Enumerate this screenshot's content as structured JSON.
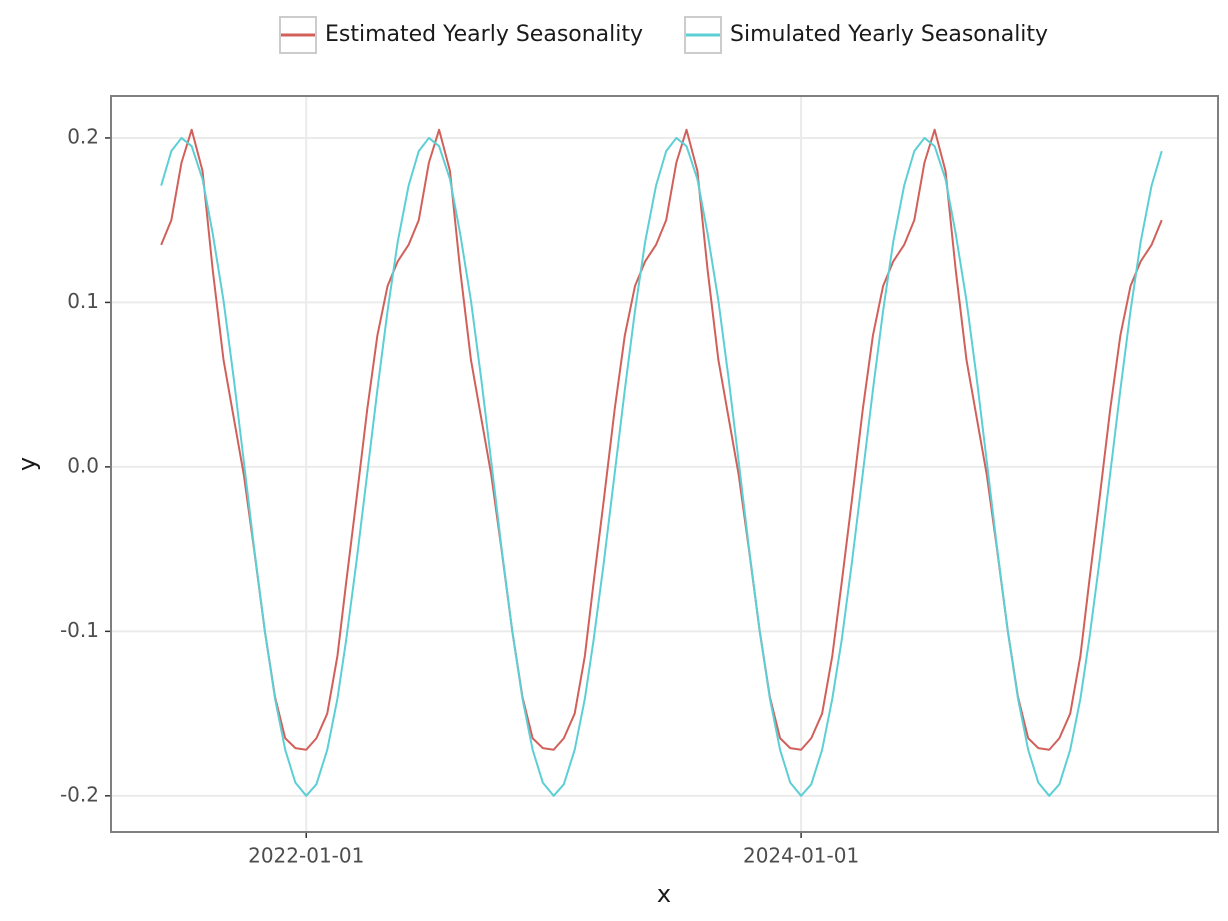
{
  "chart_data": {
    "type": "line",
    "x_label": "x",
    "y_label": "y",
    "legend": "top",
    "grid": true,
    "x": [
      "2021-06-01",
      "2021-06-16",
      "2021-07-01",
      "2021-07-16",
      "2021-08-01",
      "2021-08-16",
      "2021-09-01",
      "2021-09-16",
      "2021-10-01",
      "2021-10-16",
      "2021-11-01",
      "2021-11-16",
      "2021-12-01",
      "2021-12-16",
      "2022-01-01",
      "2022-01-16",
      "2022-02-01",
      "2022-02-16",
      "2022-03-01",
      "2022-03-16",
      "2022-04-01",
      "2022-04-16",
      "2022-05-01",
      "2022-05-16",
      "2022-06-01",
      "2022-06-16",
      "2022-07-01",
      "2022-07-16",
      "2022-08-01",
      "2022-08-16",
      "2022-09-01",
      "2022-09-16",
      "2022-10-01",
      "2022-10-16",
      "2022-11-01",
      "2022-11-16",
      "2022-12-01",
      "2022-12-16",
      "2023-01-01",
      "2023-01-16",
      "2023-02-01",
      "2023-02-16",
      "2023-03-01",
      "2023-03-16",
      "2023-04-01",
      "2023-04-16",
      "2023-05-01",
      "2023-05-16",
      "2023-06-01",
      "2023-06-16",
      "2023-07-01",
      "2023-07-16",
      "2023-08-01",
      "2023-08-16",
      "2023-09-01",
      "2023-09-16",
      "2023-10-01",
      "2023-10-16",
      "2023-11-01",
      "2023-11-16",
      "2023-12-01",
      "2023-12-16",
      "2024-01-01",
      "2024-01-16",
      "2024-02-01",
      "2024-02-16",
      "2024-03-01",
      "2024-03-16",
      "2024-04-01",
      "2024-04-16",
      "2024-05-01",
      "2024-05-16",
      "2024-06-01",
      "2024-06-16",
      "2024-07-01",
      "2024-07-16",
      "2024-08-01",
      "2024-08-16",
      "2024-09-01",
      "2024-09-16",
      "2024-10-01",
      "2024-10-16",
      "2024-11-01",
      "2024-11-16",
      "2024-12-01",
      "2024-12-16",
      "2025-01-01",
      "2025-01-16",
      "2025-02-01",
      "2025-02-16",
      "2025-03-01",
      "2025-03-16",
      "2025-04-01",
      "2025-04-16",
      "2025-05-01",
      "2025-05-16",
      "2025-06-01",
      "2025-06-16"
    ],
    "series": [
      {
        "name": "Estimated Yearly Seasonality",
        "color": "#d1605a",
        "values": [
          0.135,
          0.15,
          0.185,
          0.205,
          0.18,
          0.12,
          0.065,
          0.03,
          -0.005,
          -0.05,
          -0.1,
          -0.14,
          -0.165,
          -0.171,
          -0.172,
          -0.165,
          -0.15,
          -0.115,
          -0.07,
          -0.02,
          0.035,
          0.08,
          0.11,
          0.125,
          0.135,
          0.15,
          0.185,
          0.205,
          0.18,
          0.12,
          0.065,
          0.03,
          -0.005,
          -0.05,
          -0.1,
          -0.14,
          -0.165,
          -0.171,
          -0.172,
          -0.165,
          -0.15,
          -0.115,
          -0.07,
          -0.02,
          0.035,
          0.08,
          0.11,
          0.125,
          0.135,
          0.15,
          0.185,
          0.205,
          0.18,
          0.12,
          0.065,
          0.03,
          -0.005,
          -0.05,
          -0.1,
          -0.14,
          -0.165,
          -0.171,
          -0.172,
          -0.165,
          -0.15,
          -0.115,
          -0.07,
          -0.02,
          0.035,
          0.08,
          0.11,
          0.125,
          0.135,
          0.15,
          0.185,
          0.205,
          0.18,
          0.12,
          0.065,
          0.03,
          -0.005,
          -0.05,
          -0.1,
          -0.14,
          -0.165,
          -0.171,
          -0.172,
          -0.165,
          -0.15,
          -0.115,
          -0.07,
          -0.02,
          0.035,
          0.08,
          0.11,
          0.125,
          0.135,
          0.15
        ]
      },
      {
        "name": "Simulated Yearly Seasonality",
        "color": "#5ccfd5",
        "values": [
          0.171,
          0.192,
          0.2,
          0.195,
          0.175,
          0.142,
          0.101,
          0.054,
          0.003,
          -0.049,
          -0.1,
          -0.141,
          -0.172,
          -0.192,
          -0.2,
          -0.193,
          -0.172,
          -0.141,
          -0.105,
          -0.058,
          -0.004,
          0.047,
          0.095,
          0.137,
          0.171,
          0.192,
          0.2,
          0.195,
          0.175,
          0.142,
          0.101,
          0.054,
          0.003,
          -0.049,
          -0.1,
          -0.141,
          -0.172,
          -0.192,
          -0.2,
          -0.193,
          -0.172,
          -0.141,
          -0.105,
          -0.058,
          -0.004,
          0.047,
          0.095,
          0.137,
          0.171,
          0.192,
          0.2,
          0.195,
          0.175,
          0.142,
          0.101,
          0.054,
          0.003,
          -0.049,
          -0.1,
          -0.141,
          -0.172,
          -0.192,
          -0.2,
          -0.193,
          -0.172,
          -0.141,
          -0.105,
          -0.058,
          -0.004,
          0.047,
          0.095,
          0.137,
          0.171,
          0.192,
          0.2,
          0.195,
          0.175,
          0.142,
          0.101,
          0.054,
          0.003,
          -0.049,
          -0.1,
          -0.141,
          -0.172,
          -0.192,
          -0.2,
          -0.193,
          -0.172,
          -0.141,
          -0.105,
          -0.058,
          -0.004,
          0.047,
          0.095,
          0.137,
          0.171,
          0.192
        ]
      }
    ],
    "xlim": [
      "2021-03-19",
      "2025-09-07"
    ],
    "xticks": [
      "2022-01-01",
      "2024-01-01"
    ],
    "ylim": [
      -0.222,
      0.2255
    ],
    "yticks": [
      {
        "value": -0.2,
        "label": "-0.2"
      },
      {
        "value": -0.1,
        "label": "-0.1"
      },
      {
        "value": 0,
        "label": "0.0"
      },
      0.1,
      0.2
    ]
  }
}
